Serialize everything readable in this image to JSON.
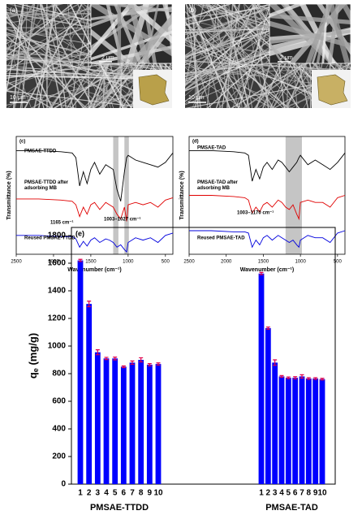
{
  "sem_panels": [
    {
      "label": "(a)",
      "inset_scale": "2 μm",
      "scale": "10 μm"
    },
    {
      "label": "(b)",
      "inset_scale": "2 μm",
      "scale": "10 μm"
    }
  ],
  "chart_data": [
    {
      "type": "line",
      "panel": "(c)",
      "xlabel": "Wavenumber (cm⁻¹)",
      "ylabel": "Transmittance (%)",
      "xlim": [
        2500,
        400
      ],
      "xticks": [
        2500,
        2000,
        1500,
        1000,
        500
      ],
      "ylim": [
        0,
        100
      ],
      "highlight_bands": [
        [
          1200,
          1130
        ],
        [
          1050,
          990
        ]
      ],
      "annotations": [
        "1165 cm⁻¹",
        "1003–1027 cm⁻¹"
      ],
      "x": [
        2500,
        2200,
        1900,
        1750,
        1700,
        1650,
        1600,
        1550,
        1500,
        1450,
        1380,
        1300,
        1250,
        1200,
        1150,
        1100,
        1050,
        1020,
        1000,
        900,
        800,
        700,
        600,
        500,
        400
      ],
      "series": [
        {
          "name": "PMSAE-TTDD",
          "color": "#000000",
          "values": [
            88,
            88,
            87,
            86,
            82,
            58,
            70,
            60,
            72,
            78,
            68,
            76,
            74,
            72,
            55,
            45,
            70,
            82,
            84,
            80,
            78,
            76,
            74,
            78,
            86
          ]
        },
        {
          "name": "PMSAE-TTDD after\nadsorbing MB",
          "color": "#e00000",
          "values": [
            47,
            47,
            46,
            45,
            42,
            32,
            40,
            34,
            42,
            44,
            38,
            44,
            42,
            40,
            34,
            30,
            40,
            28,
            42,
            44,
            42,
            44,
            40,
            46,
            48
          ]
        },
        {
          "name": "Reused PMSAE-TTDD",
          "color": "#0000dd",
          "values": [
            16,
            16,
            15,
            15,
            13,
            6,
            11,
            7,
            12,
            14,
            10,
            13,
            12,
            10,
            6,
            8,
            4,
            2,
            10,
            14,
            12,
            14,
            10,
            16,
            18
          ]
        }
      ]
    },
    {
      "type": "line",
      "panel": "(d)",
      "xlabel": "Wavenumber (cm⁻¹)",
      "ylabel": "Transmittance (%)",
      "xlim": [
        2500,
        400
      ],
      "xticks": [
        2500,
        2000,
        1500,
        1000,
        500
      ],
      "ylim": [
        0,
        100
      ],
      "highlight_bands": [
        [
          1200,
          980
        ]
      ],
      "annotations": [
        "1003–1170 cm⁻¹"
      ],
      "x": [
        2500,
        2200,
        1900,
        1750,
        1700,
        1650,
        1600,
        1550,
        1500,
        1450,
        1380,
        1300,
        1250,
        1200,
        1150,
        1100,
        1050,
        1020,
        1000,
        900,
        800,
        700,
        600,
        500,
        400
      ],
      "series": [
        {
          "name": "PMSAE-TAD",
          "color": "#000000",
          "values": [
            88,
            88,
            87,
            86,
            84,
            62,
            72,
            64,
            74,
            78,
            72,
            80,
            78,
            74,
            70,
            74,
            78,
            82,
            84,
            76,
            80,
            76,
            72,
            78,
            86
          ]
        },
        {
          "name": "PMSAE-TAD after\nadsorbing MB",
          "color": "#e00000",
          "values": [
            50,
            50,
            49,
            48,
            46,
            35,
            40,
            36,
            42,
            44,
            40,
            46,
            44,
            40,
            38,
            42,
            34,
            30,
            44,
            46,
            44,
            44,
            40,
            48,
            50
          ]
        },
        {
          "name": "Reused PMSAE-TAD",
          "color": "#0000dd",
          "values": [
            20,
            20,
            19,
            19,
            18,
            6,
            12,
            8,
            14,
            16,
            12,
            16,
            14,
            12,
            10,
            12,
            8,
            6,
            12,
            16,
            14,
            14,
            10,
            18,
            20
          ]
        }
      ]
    },
    {
      "type": "bar",
      "panel": "(e)",
      "ylabel": "q",
      "ylabel_sub": "e",
      "ylabel_unit": " (mg/g)",
      "ylim": [
        0,
        1800
      ],
      "yticks": [
        0,
        200,
        400,
        600,
        800,
        1000,
        1200,
        1400,
        1600,
        1800
      ],
      "categories": [
        "1",
        "2",
        "3",
        "4",
        "5",
        "6",
        "7",
        "8",
        "9",
        "10"
      ],
      "groups": [
        "PMSAE-TTDD",
        "PMSAE-TAD"
      ],
      "color": "#0000ff",
      "error_color": "#e0004a",
      "values": [
        [
          1620,
          1305,
          955,
          910,
          910,
          850,
          880,
          900,
          865,
          870
        ],
        [
          1525,
          1130,
          880,
          780,
          770,
          770,
          780,
          765,
          765,
          760
        ]
      ],
      "errors": [
        [
          8,
          20,
          18,
          8,
          10,
          6,
          12,
          15,
          8,
          8
        ],
        [
          8,
          8,
          20,
          6,
          6,
          8,
          12,
          6,
          6,
          6
        ]
      ]
    }
  ]
}
